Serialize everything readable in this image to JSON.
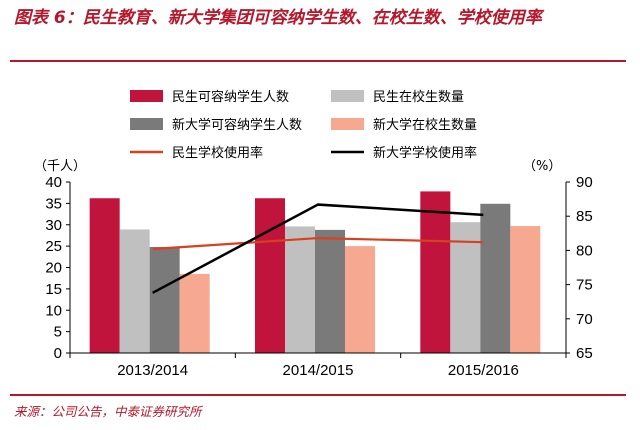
{
  "title": "图表 6：民生教育、新大学集团可容纳学生数、在校生数、学校使用率",
  "source": "来源：公司公告，中泰证券研究所",
  "chart_data": {
    "type": "bar",
    "categories": [
      "2013/2014",
      "2014/2015",
      "2015/2016"
    ],
    "left_axis": {
      "unit": "（千人）",
      "ylim": [
        0,
        40
      ],
      "ticks": [
        0,
        5,
        10,
        15,
        20,
        25,
        30,
        35,
        40
      ]
    },
    "right_axis": {
      "unit": "（%）",
      "ylim": [
        65,
        90
      ],
      "ticks": [
        65,
        70,
        75,
        80,
        85,
        90
      ]
    },
    "series": [
      {
        "name": "民生可容纳学生人数",
        "kind": "bar",
        "axis": "left",
        "color": "#c0143c",
        "values": [
          36.2,
          36.2,
          37.8
        ]
      },
      {
        "name": "民生在校生数量",
        "kind": "bar",
        "axis": "left",
        "color": "#c0c0c0",
        "values": [
          28.9,
          29.6,
          30.6
        ]
      },
      {
        "name": "新大学可容纳学生人数",
        "kind": "bar",
        "axis": "left",
        "color": "#7a7a7a",
        "values": [
          24.8,
          28.8,
          34.9
        ]
      },
      {
        "name": "新大学在校生数量",
        "kind": "bar",
        "axis": "left",
        "color": "#f7a891",
        "values": [
          18.5,
          25.0,
          29.7
        ]
      },
      {
        "name": "民生学校使用率",
        "kind": "line",
        "axis": "right",
        "color": "#d9401e",
        "values": [
          80.2,
          81.8,
          81.2
        ]
      },
      {
        "name": "新大学学校使用率",
        "kind": "line",
        "axis": "right",
        "color": "#000000",
        "values": [
          73.8,
          86.7,
          85.2
        ]
      }
    ],
    "legend_position": "top"
  }
}
